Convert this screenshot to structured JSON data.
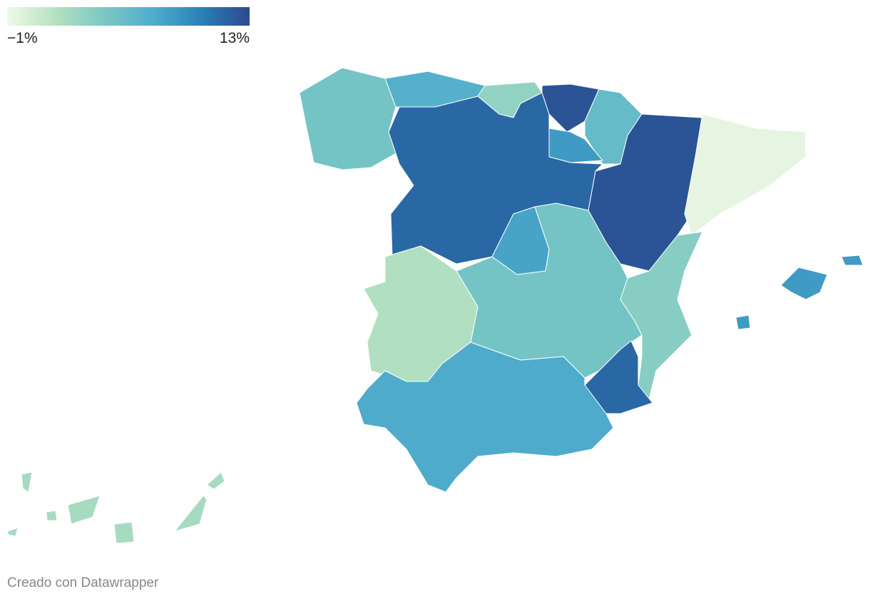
{
  "legend": {
    "colors": [
      "#f0f9e8",
      "#b4e1c1",
      "#7bc8c4",
      "#4fadcc",
      "#2a80b8",
      "#2b4a8f"
    ],
    "range": [
      -1,
      13
    ],
    "ticks": [
      {
        "value": -1,
        "label": "−1%"
      },
      {
        "value": 13,
        "label": "13%"
      }
    ]
  },
  "region_values": [
    5,
    7,
    3.5,
    12.5,
    6,
    8.5,
    12.5,
    -0.5,
    11.5,
    8,
    5,
    2,
    4,
    11.5,
    7.5,
    8.5,
    2.5
  ],
  "footer": "Creado con Datawrapper"
}
